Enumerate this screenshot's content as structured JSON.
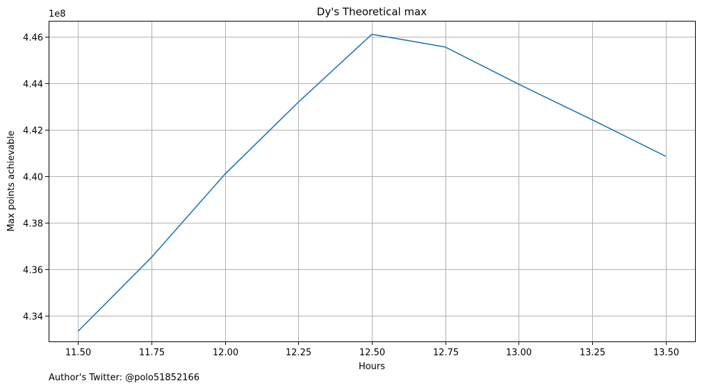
{
  "chart_data": {
    "type": "line",
    "title": "Dy's Theoretical max",
    "xlabel": "Hours",
    "ylabel": "Max points achievable",
    "y_offset_label": "1e8",
    "xlim": [
      11.4,
      13.6
    ],
    "ylim": [
      4.3288,
      4.4668
    ],
    "x_ticks": [
      11.5,
      11.75,
      12.0,
      12.25,
      12.5,
      12.75,
      13.0,
      13.25,
      13.5
    ],
    "x_tick_labels": [
      "11.50",
      "11.75",
      "12.00",
      "12.25",
      "12.50",
      "12.75",
      "13.00",
      "13.25",
      "13.50"
    ],
    "y_ticks": [
      4.34,
      4.36,
      4.38,
      4.4,
      4.42,
      4.44,
      4.46
    ],
    "y_tick_labels": [
      "4.34",
      "4.36",
      "4.38",
      "4.40",
      "4.42",
      "4.44",
      "4.46"
    ],
    "grid": true,
    "series": [
      {
        "color": "#1f77b4",
        "x": [
          11.5,
          11.75,
          12.0,
          12.25,
          12.5,
          12.75,
          13.0,
          13.25,
          13.5
        ],
        "y": [
          4.3332,
          4.365,
          4.4008,
          4.4318,
          4.461,
          4.4555,
          4.4395,
          4.4242,
          4.4085
        ]
      }
    ]
  },
  "footnote": "Author's Twitter: @polo51852166"
}
